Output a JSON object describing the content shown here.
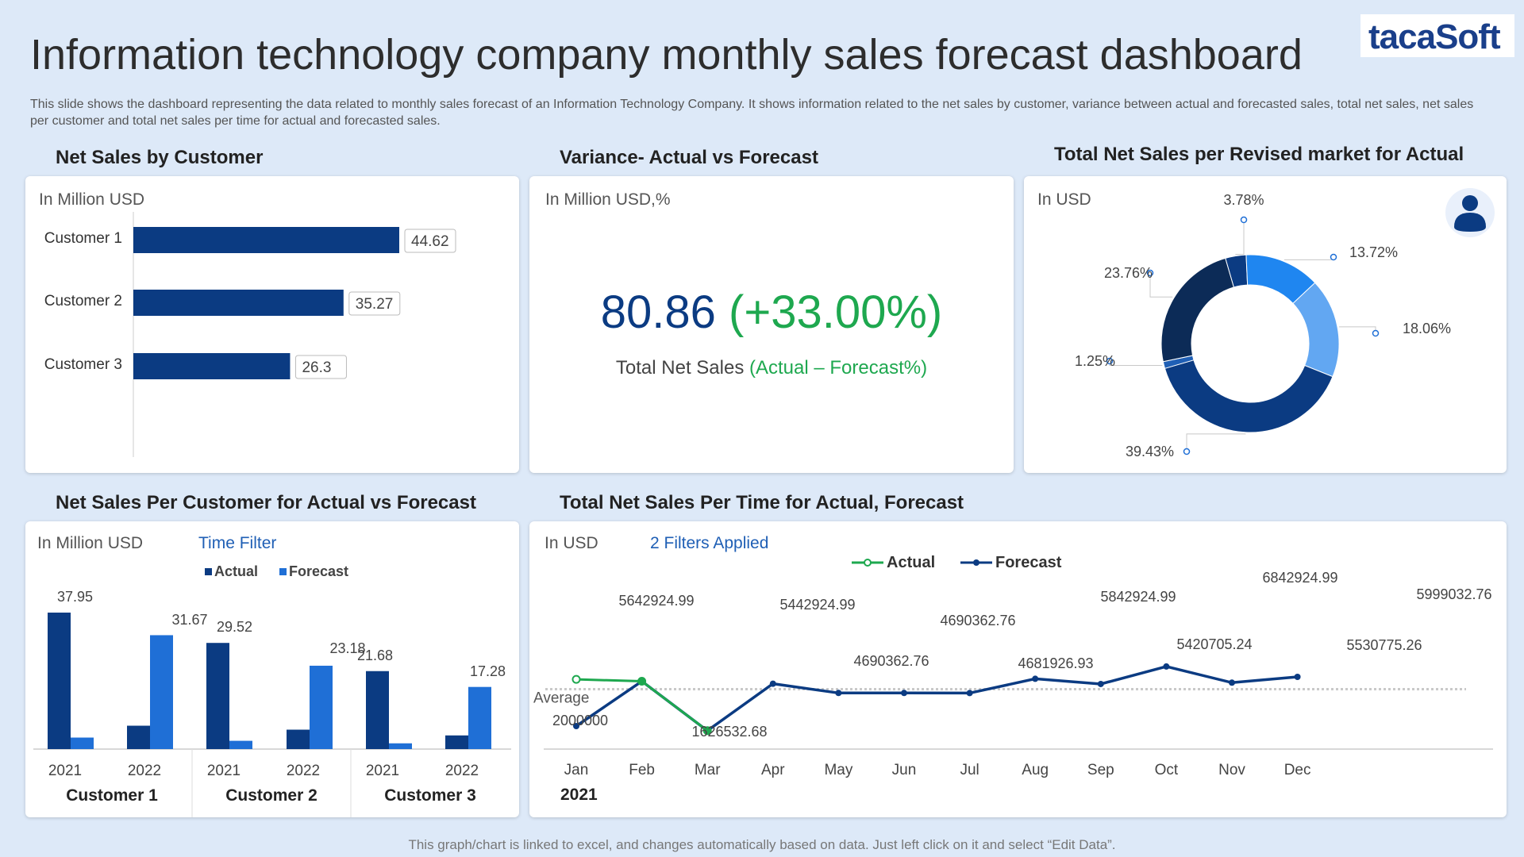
{
  "header": {
    "title": "Information technology company monthly sales forecast dashboard",
    "description": "This slide shows the dashboard representing the data related to monthly sales forecast of an Information Technology Company. It shows information related to the net sales by customer, variance between actual and forecasted sales, total net sales, net sales per customer and total net sales per time for actual and forecasted sales.",
    "logo_text": "tacaSoft"
  },
  "colors": {
    "navy": "#0b3b82",
    "dark_navy": "#0a2a5e",
    "blue": "#1f6fd6",
    "light_blue": "#62a7f2",
    "green": "#1ea84f"
  },
  "panel1": {
    "title": "Net Sales by Customer",
    "unit": "In Million  USD"
  },
  "panel2": {
    "title": "Variance- Actual vs Forecast",
    "unit": "In Million  USD,%",
    "value": "80.86",
    "pct": "(+33.00%)",
    "caption_main": "Total Net Sales ",
    "caption_sub": "(Actual – Forecast%)"
  },
  "panel3": {
    "title": "Total Net Sales per Revised  market for Actual",
    "unit": "In USD",
    "icon": "user-icon"
  },
  "panel4": {
    "title": "Net Sales Per Customer for Actual vs Forecast",
    "unit": "In Million  USD",
    "filter": "Time Filter"
  },
  "panel5": {
    "title": "Total Net Sales Per Time for Actual, Forecast",
    "unit": "In USD",
    "filter": "2 Filters Applied",
    "average_label": "Average",
    "year_label": "2021"
  },
  "footer": "This graph/chart is linked to excel,  and changes automatically based on data. Just left click on it and select “Edit Data”.",
  "chart_data": [
    {
      "type": "bar",
      "orientation": "horizontal",
      "categories": [
        "Customer 1",
        "Customer 2",
        "Customer 3"
      ],
      "values": [
        44.62,
        35.27,
        26.3
      ],
      "labels": [
        "44.62",
        "35.27",
        "26.3"
      ],
      "xlim": [
        0,
        60
      ]
    },
    {
      "type": "pie",
      "donut": true,
      "labels": [
        "3.78%",
        "13.72%",
        "18.06%",
        "39.43%",
        "1.25%",
        "23.76%"
      ],
      "values": [
        3.78,
        13.72,
        18.06,
        39.43,
        1.25,
        23.76
      ],
      "colors": [
        "#0b3b82",
        "#1f86f0",
        "#62a7f2",
        "#0b3b82",
        "#1f5fb5",
        "#0c2b57"
      ]
    },
    {
      "type": "bar",
      "legend": [
        "Actual",
        "Forecast"
      ],
      "groups": [
        {
          "label": "Customer 1",
          "years": [
            "2021",
            "2022"
          ],
          "actual": [
            37.95,
            6.5
          ],
          "forecast": [
            3.2,
            31.67
          ],
          "shown_labels": [
            "37.95",
            "31.67"
          ]
        },
        {
          "label": "Customer 2",
          "years": [
            "2021",
            "2022"
          ],
          "actual": [
            29.52,
            5.4
          ],
          "forecast": [
            2.3,
            23.18
          ],
          "shown_labels": [
            "29.52",
            "23.18"
          ]
        },
        {
          "label": "Customer 3",
          "years": [
            "2021",
            "2022"
          ],
          "actual": [
            21.68,
            3.8
          ],
          "forecast": [
            1.6,
            17.28
          ],
          "shown_labels": [
            "21.68",
            "17.28"
          ]
        }
      ],
      "ylim": [
        0,
        40
      ]
    },
    {
      "type": "line",
      "categories": [
        "Jan",
        "Feb",
        "Mar",
        "Apr",
        "May",
        "Jun",
        "Jul",
        "Aug",
        "Sep",
        "Oct",
        "Nov",
        "Dec"
      ],
      "series": [
        {
          "name": "Actual",
          "values": [
            5800000,
            5642924.99,
            1626532.68,
            null,
            null,
            null,
            null,
            null,
            null,
            null,
            null,
            null
          ]
        },
        {
          "name": "Forecast",
          "values": [
            2000000,
            5642924.99,
            1626532.68,
            5442924.99,
            4690362.76,
            4690362.76,
            4681926.93,
            5842924.99,
            5420705.24,
            6842924.99,
            5530775.26,
            5999032.76
          ]
        }
      ],
      "labels": [
        "2000000",
        "5642924.99",
        "1626532.68",
        "5442924.99",
        "4690362.76",
        "4690362.76",
        "4681926.93",
        "5842924.99",
        "5420705.24",
        "6842924.99",
        "5530775.26",
        "5999032.76"
      ],
      "average": 5000000,
      "ylim": [
        0,
        8000000
      ]
    }
  ]
}
